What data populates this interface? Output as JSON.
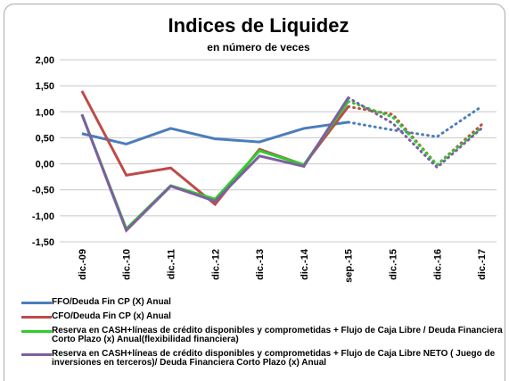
{
  "chart_data": {
    "type": "line",
    "title": "Indices de Liquidez",
    "subtitle": "en número de veces",
    "categories": [
      "dic.-09",
      "dic.-10",
      "dic.-11",
      "dic.-12",
      "dic.-13",
      "dic.-14",
      "sep.-15",
      "dic.-15",
      "dic.-16",
      "dic.-17"
    ],
    "dotted_after": "sep.-15",
    "ylim": [
      -1.5,
      2.0
    ],
    "yticks": [
      {
        "value": -1.5,
        "label": "-1,50"
      },
      {
        "value": -1.0,
        "label": "-1,00"
      },
      {
        "value": -0.5,
        "label": "-0,50"
      },
      {
        "value": 0,
        "label": "0,00"
      },
      {
        "value": 0.5,
        "label": "0,50"
      },
      {
        "value": 1.0,
        "label": "1,00"
      },
      {
        "value": 1.5,
        "label": "1,50"
      },
      {
        "value": 2.0,
        "label": "2,00"
      }
    ],
    "grid": true,
    "series": [
      {
        "name": "FFO/Deuda Fin CP (X) Anual",
        "color": "#4a7ebb",
        "values": [
          0.58,
          0.38,
          0.68,
          0.48,
          0.42,
          0.68,
          0.8,
          0.65,
          0.52,
          1.1
        ]
      },
      {
        "name": "CFO/Deuda Fin CP (x) Anual",
        "color": "#be4b48",
        "values": [
          1.4,
          -0.22,
          -0.08,
          -0.78,
          0.28,
          -0.02,
          1.1,
          0.95,
          -0.02,
          0.75
        ]
      },
      {
        "name": "Reserva en CASH+líneas de crédito disponibles y comprometidas + Flujo de Caja Libre / Deuda Financiera Corto Plazo  (x) Anual(flexibilidad financiera)",
        "color": "#2ecc2e",
        "values": [
          0.95,
          -1.25,
          -0.42,
          -0.68,
          0.25,
          -0.02,
          1.2,
          0.9,
          -0.02,
          0.7
        ]
      },
      {
        "name": "Reserva en CASH+líneas de crédito disponibles y comprometidas + Flujo de Caja Libre NETO ( Juego de inversiones en terceros)/ Deuda Financiera Corto Plazo  (x) Anual",
        "color": "#7d5fa0",
        "values": [
          0.95,
          -1.28,
          -0.43,
          -0.72,
          0.15,
          -0.05,
          1.27,
          0.78,
          -0.07,
          0.68
        ]
      }
    ]
  }
}
